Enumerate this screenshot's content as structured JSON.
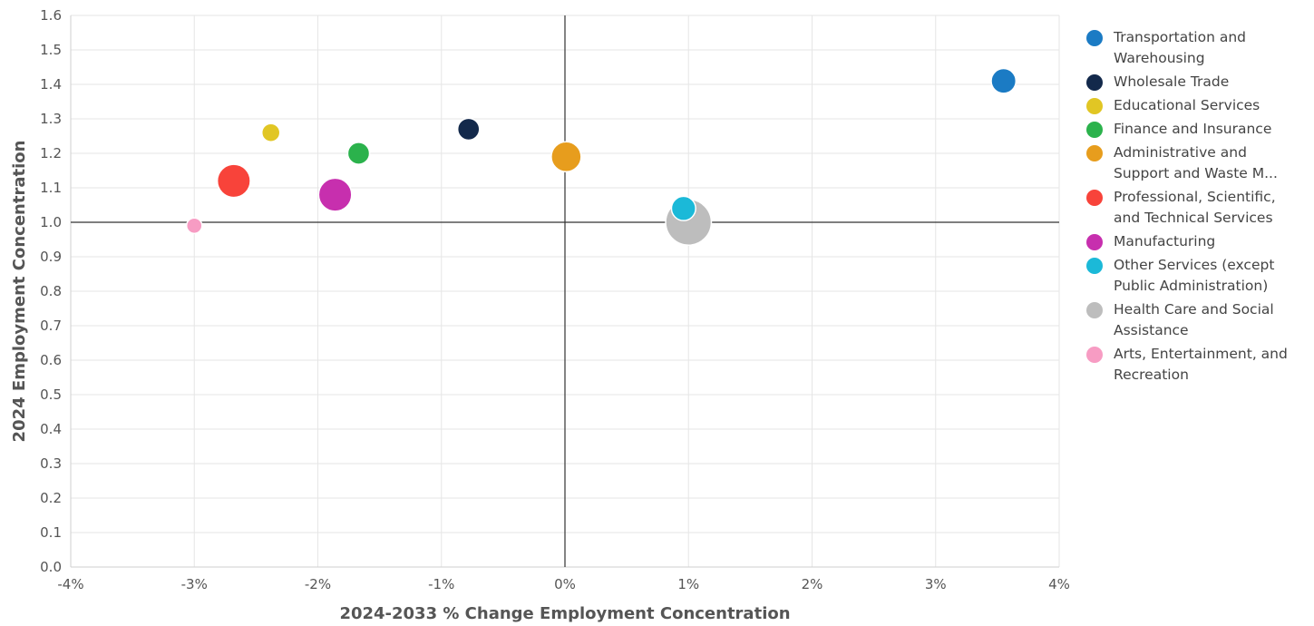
{
  "chart_data": {
    "type": "scatter",
    "subtype": "bubble",
    "xlabel": "2024-2033 % Change Employment Concentration",
    "ylabel": "2024 Employment Concentration",
    "xlim": [
      -4,
      4
    ],
    "ylim": [
      0.0,
      1.6
    ],
    "x_ticks": [
      -4,
      -3,
      -2,
      -1,
      0,
      1,
      2,
      3,
      4
    ],
    "x_tick_labels": [
      "-4%",
      "-3%",
      "-2%",
      "-1%",
      "0%",
      "1%",
      "2%",
      "3%",
      "4%"
    ],
    "y_ticks": [
      0.0,
      0.1,
      0.2,
      0.3,
      0.4,
      0.5,
      0.6,
      0.7,
      0.8,
      0.9,
      1.0,
      1.1,
      1.2,
      1.3,
      1.4,
      1.5,
      1.6
    ],
    "y_tick_labels": [
      "0.0",
      "0.1",
      "0.2",
      "0.3",
      "0.4",
      "0.5",
      "0.6",
      "0.7",
      "0.8",
      "0.9",
      "1.0",
      "1.1",
      "1.2",
      "1.3",
      "1.4",
      "1.5",
      "1.6"
    ],
    "grid": true,
    "reference_lines": {
      "x": 0,
      "y": 1.0
    },
    "legend_position": "right",
    "series": [
      {
        "name": "Transportation and\nWarehousing",
        "color": "#1b7bc4",
        "x": 3.55,
        "y": 1.41,
        "size": 3
      },
      {
        "name": "Wholesale Trade",
        "color": "#13294b",
        "x": -0.78,
        "y": 1.27,
        "size": 2
      },
      {
        "name": "Educational Services",
        "color": "#e1c624",
        "x": -2.38,
        "y": 1.26,
        "size": 1
      },
      {
        "name": "Finance and Insurance",
        "color": "#2bb24c",
        "x": -1.67,
        "y": 1.2,
        "size": 2
      },
      {
        "name": "Administrative and\nSupport and Waste M...",
        "color": "#e79d1d",
        "x": 0.01,
        "y": 1.19,
        "size": 4
      },
      {
        "name": "Professional, Scientific,\nand Technical Services",
        "color": "#f8433a",
        "x": -2.68,
        "y": 1.12,
        "size": 5.5
      },
      {
        "name": "Manufacturing",
        "color": "#c72fae",
        "x": -1.86,
        "y": 1.08,
        "size": 5.5
      },
      {
        "name": "Other Services (except\nPublic Administration)",
        "color": "#1bb9d8",
        "x": 0.96,
        "y": 1.04,
        "size": 2.8
      },
      {
        "name": "Health Care and Social\nAssistance",
        "color": "#bdbdbd",
        "x": 1.0,
        "y": 1.0,
        "size": 14
      },
      {
        "name": "Arts, Entertainment, and\nRecreation",
        "color": "#f79cc3",
        "x": -3.0,
        "y": 0.99,
        "size": 0.5
      }
    ]
  }
}
